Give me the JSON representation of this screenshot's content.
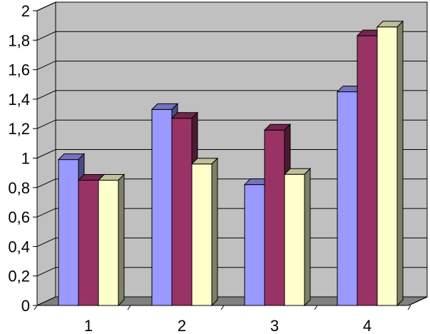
{
  "chart_data": {
    "type": "bar",
    "categories": [
      "1",
      "2",
      "3",
      "4"
    ],
    "series": [
      {
        "values": [
          0.99,
          1.33,
          0.82,
          1.45
        ]
      },
      {
        "values": [
          0.85,
          1.27,
          1.19,
          1.83
        ]
      },
      {
        "values": [
          0.85,
          0.96,
          0.89,
          1.89
        ]
      }
    ],
    "ylim": [
      0,
      2
    ],
    "ytick_values": [
      0,
      0.2,
      0.4,
      0.6,
      0.8,
      1,
      1.2,
      1.4,
      1.6,
      1.8,
      2
    ],
    "ytick_labels": [
      "0",
      "0,2",
      "0,4",
      "0,6",
      "0,8",
      "1",
      "1,2",
      "1,4",
      "1,6",
      "1,8",
      "2"
    ],
    "grid": true,
    "legend": "none",
    "style": "3d-clustered-bar",
    "colors": {
      "series": [
        "#9999ff",
        "#993366",
        "#ffffcc"
      ],
      "series_side": [
        "#4c4c80",
        "#4c1a33",
        "#808066"
      ],
      "series_top": [
        "#7373bf",
        "#73264d",
        "#bfbf99"
      ],
      "wall": "#c0c0c0",
      "floor": "#808080",
      "gridline": "#000000",
      "outline": "#000000"
    }
  }
}
